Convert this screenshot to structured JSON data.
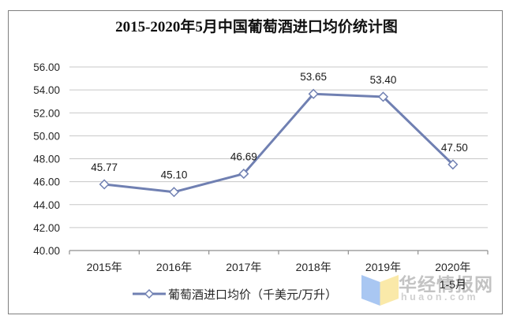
{
  "title": "2015-2020年5月中国葡萄酒进口均价统计图",
  "legend": {
    "label": "葡萄酒进口均价（千美元/万升）"
  },
  "watermark": {
    "brand": "华经情报网",
    "domain": "huaon.com"
  },
  "logo": {
    "left_color": "#a9c7f2",
    "right_color": "#fae9a9"
  },
  "colors": {
    "line": "#7080b2",
    "marker_fill": "#ffffff",
    "grid": "#c7c7c7",
    "axis": "#8f8f8f",
    "text": "#262626",
    "frame": "#7f7f7f"
  },
  "chart_data": {
    "type": "line",
    "title": "2015-2020年5月中国葡萄酒进口均价统计图",
    "series_name": "葡萄酒进口均价（千美元/万升）",
    "categories": [
      [
        "2015年"
      ],
      [
        "2016年"
      ],
      [
        "2017年"
      ],
      [
        "2018年"
      ],
      [
        "2019年"
      ],
      [
        "2020年",
        "1-5月"
      ]
    ],
    "values": [
      45.77,
      45.1,
      46.69,
      53.65,
      53.4,
      47.5
    ],
    "point_labels": [
      "45.77",
      "45.10",
      "46.69",
      "53.65",
      "53.40",
      "47.50"
    ],
    "ylim": [
      40,
      56
    ],
    "ytick_step": 2,
    "ytick_labels": [
      "56.00",
      "54.00",
      "52.00",
      "50.00",
      "48.00",
      "46.00",
      "44.00",
      "42.00",
      "40.00"
    ],
    "xlabel": "",
    "ylabel": "",
    "grid": true,
    "legend_position": "bottom",
    "marker": "open-diamond"
  }
}
